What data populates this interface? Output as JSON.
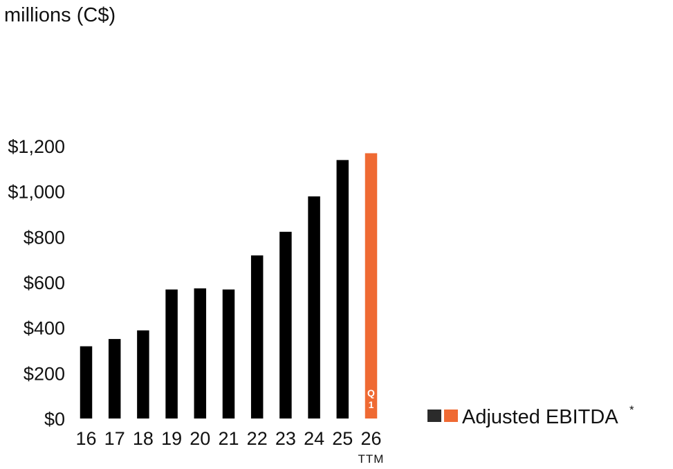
{
  "chart_data": {
    "type": "bar",
    "units_label": "millions (C$)",
    "categories": [
      "16",
      "17",
      "18",
      "19",
      "20",
      "21",
      "22",
      "23",
      "24",
      "25",
      "26"
    ],
    "category_sublabels": [
      "",
      "",
      "",
      "",
      "",
      "",
      "",
      "",
      "",
      "",
      "TTM"
    ],
    "bar_annotations": [
      "",
      "",
      "",
      "",
      "",
      "",
      "",
      "",
      "",
      "",
      "Q1"
    ],
    "series": [
      {
        "name": "Adjusted EBITDA*",
        "values": [
          318,
          350,
          388,
          568,
          573,
          568,
          718,
          822,
          978,
          1138,
          1168
        ],
        "colors": [
          "#000000",
          "#000000",
          "#000000",
          "#000000",
          "#000000",
          "#000000",
          "#000000",
          "#000000",
          "#000000",
          "#000000",
          "#ef6a33"
        ]
      }
    ],
    "y_ticks": [
      "$0",
      "$200",
      "$400",
      "$600",
      "$800",
      "$1,000",
      "$1,200"
    ],
    "y_tick_values": [
      0,
      200,
      400,
      600,
      800,
      1000,
      1200
    ],
    "ylim": [
      0,
      1200
    ],
    "grid": false,
    "legend": {
      "position": "right",
      "label": "Adjusted EBITDA",
      "superscript": "*",
      "swatch_colors": [
        "#2b2b2b",
        "#ef6a33"
      ]
    }
  }
}
